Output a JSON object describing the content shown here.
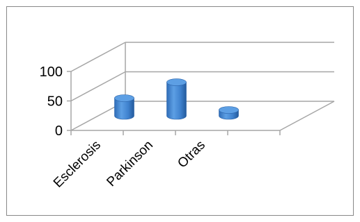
{
  "chart_data": {
    "type": "bar",
    "style": "3d-cylinder",
    "categories": [
      "Esclerosis",
      "Parkinson",
      "Otras"
    ],
    "series": [
      {
        "values": [
          30,
          57,
          10
        ]
      }
    ],
    "ylim": [
      0,
      100
    ],
    "yticks": [
      "0",
      "50",
      "100"
    ],
    "grid": true,
    "legend": "none",
    "colors": {
      "bar": "#4a8fd6",
      "bar_dark": "#2a62a8",
      "bar_top": "#5d9fe4",
      "grid": "#a6a6a6"
    }
  }
}
